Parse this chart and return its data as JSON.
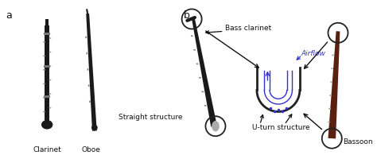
{
  "fig_width": 4.74,
  "fig_height": 2.01,
  "dpi": 100,
  "bg_color": "#ffffff",
  "label_a": "a",
  "label_b": "b",
  "text_clarinet": "Clarinet",
  "text_oboe": "Oboe",
  "text_straight": "Straight structure",
  "text_bass_clarinet": "Bass clarinet",
  "text_airflow": "Airflow",
  "text_uturn": "U-turn structure",
  "text_bassoon": "Bassoon",
  "blue_color": "#3333cc",
  "black_color": "#222222",
  "dark_color": "#111111",
  "instrument_color": "#1a1a1a",
  "bassoon_color": "#5a2010",
  "circle_color": "#222222",
  "arrow_color": "#111111",
  "font_size_text": 6.5,
  "font_size_ab": 9,
  "font_size_small": 6.0
}
